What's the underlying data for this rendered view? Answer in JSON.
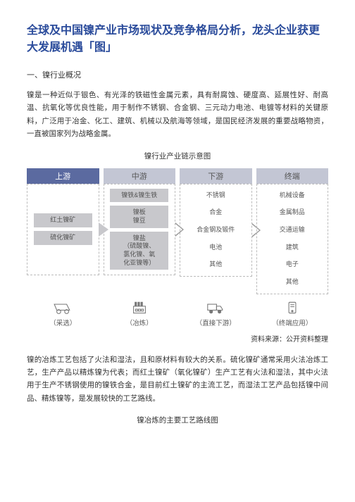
{
  "title_color": "#2a4b9b",
  "title": "全球及中国镍产业市场现状及竞争格局分析，龙头企业获更大发展机遇「图」",
  "section1": "一、镍行业概况",
  "para1": "镍是一种近似于银色、有光泽的铁磁性金属元素，具有耐腐蚀、硬度高、延展性好、耐高温、抗氧化等优良性能，用于制作不锈钢、合金钢、三元动力电池、电镀等材料的关键原料，广泛用于冶金、化工、建筑、机械以及航海等领域，是国民经济发展的重要战略物资，一直被国家列为战略金属。",
  "diagram_title": "镍行业产业链示意图",
  "heads": [
    {
      "label": "上游",
      "bg": "#5b6aa0",
      "fg": "#ffffff"
    },
    {
      "label": "中游",
      "bg": "#c3c6d4",
      "fg": "#555555"
    },
    {
      "label": "下游",
      "bg": "#c3c6d4",
      "fg": "#555555"
    },
    {
      "label": "终端",
      "bg": "#c3c6d4",
      "fg": "#555555"
    }
  ],
  "cols": [
    {
      "nodes": [
        {
          "t": "红土镍矿",
          "g": true
        },
        {
          "t": "硫化镍矿",
          "g": true
        }
      ],
      "arrow": "solid"
    },
    {
      "nodes": [
        {
          "t": "镍铁&镍生铁",
          "g": true
        },
        {
          "t": "镍板\n镍豆",
          "g": true
        },
        {
          "t": "镍盐\n（硫酸镍、\n氯化镍、氧\n化亚镍等）",
          "g": true
        }
      ],
      "arrow": "open"
    },
    {
      "nodes": [
        {
          "t": "不锈钢",
          "g": false
        },
        {
          "t": "合金",
          "g": false
        },
        {
          "t": "合金钢及锻件",
          "g": false
        },
        {
          "t": "电池",
          "g": false
        },
        {
          "t": "其他",
          "g": false
        }
      ],
      "arrow": "open"
    },
    {
      "nodes": [
        {
          "t": "机械设备",
          "g": false
        },
        {
          "t": "金属制品",
          "g": false
        },
        {
          "t": "交通运输",
          "g": false
        },
        {
          "t": "建筑",
          "g": false
        },
        {
          "t": "电子",
          "g": false
        },
        {
          "t": "其他",
          "g": false
        }
      ],
      "arrow": null
    }
  ],
  "icons": [
    {
      "label": "（采选）"
    },
    {
      "label": "（冶炼）"
    },
    {
      "label": "（直接下游）"
    },
    {
      "label": "（终端应用）"
    }
  ],
  "source": "资料来源：公开资料整理",
  "para2": "镍的冶炼工艺包括了火法和湿法，且和原材料有较大的关系。硫化镍矿通常采用火法冶炼工艺，生产产品以精炼镍为代表；而红土镍矿（氧化镍矿）生产工艺有火法和湿法，其中火法用于生产不锈钢使用的镍铁合金，是目前红土镍矿的主流工艺，而湿法工艺产品包括镍中间品、精炼镍等，是发展较快的工艺路线。",
  "diagram2_title": "镍冶炼的主要工艺路线图"
}
